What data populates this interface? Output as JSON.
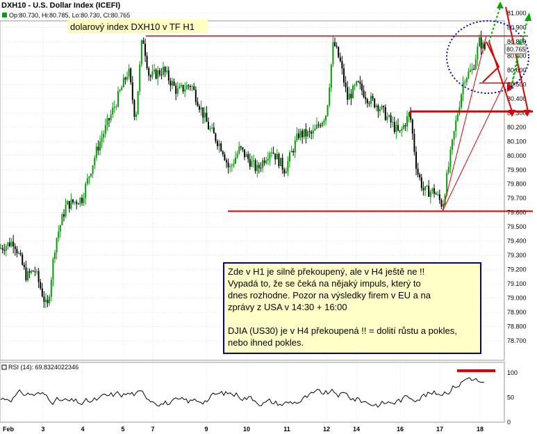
{
  "header": {
    "title": "DXH10 - U.S. Dollar Index (ICEFI)",
    "ohlc": "Op:80.730, Hi:80.785, Lo:80.730, Cl:80.765",
    "last_price": "80.765"
  },
  "annotations": {
    "title_box": "dolarový index DXH10 v TF H1",
    "note": [
      {
        "text": "Zde v H1 je silně překoupený, ale v H4 ještě ne  !!",
        "underline": false
      },
      {
        "text": "Vypadá to, že se čeká na nějaký impuls, který to",
        "underline": false
      },
      {
        "text": "dnes rozhodne.  Pozor na výsledky firem v EU a na",
        "underline": false
      },
      {
        "text": "zprávy z USA v 14:30 + 16:00",
        "underline": false
      },
      {
        "text": "",
        "underline": false
      },
      {
        "text": "DJIA (US30)  je v H4 překoupená !! = dolití růstu a pokles,",
        "underline": false
      },
      {
        "text": "nebo ihned pokles.",
        "underline": false
      }
    ]
  },
  "rsi": {
    "label": "RSI (14): 69.8324022346",
    "ticks": [
      0,
      50,
      100
    ],
    "ylim": [
      0,
      100
    ]
  },
  "colors": {
    "up": "#00a000",
    "down": "#000000",
    "grid": "#c8c8c8",
    "resistance": "#e00000",
    "note_border": "#0000aa",
    "note_fill": "#ffffc8",
    "title_fill": "#ffffc0",
    "circle": "#0000cc",
    "arrow_up": "#00aa00"
  },
  "chart_data": {
    "type": "line",
    "title": "DXH10 - U.S. Dollar Index (ICEFI)",
    "xlabel": "",
    "ylabel": "",
    "ylim": [
      78.7,
      81.0
    ],
    "yticks": [
      "78.700",
      "78.800",
      "78.900",
      "79.000",
      "79.100",
      "79.200",
      "79.300",
      "79.400",
      "79.500",
      "79.600",
      "79.700",
      "79.800",
      "79.900",
      "80.000",
      "80.100",
      "80.200",
      "80.300",
      "80.400",
      "80.500",
      "80.600",
      "80.700",
      "80.800",
      "80.900",
      "81.000"
    ],
    "x_ticks": [
      "Feb",
      "3",
      "4",
      "5",
      "7",
      "9",
      "10",
      "11",
      "12",
      "14",
      "16",
      "17",
      "18"
    ],
    "grid": true,
    "series": [
      {
        "x": [
          "Feb",
          "3",
          "4",
          "5",
          "7",
          "9",
          "10",
          "11",
          "12",
          "14",
          "16",
          "17",
          "18"
        ],
        "values": [
          79.35,
          79.15,
          79.55,
          80.1,
          80.45,
          80.3,
          79.95,
          80.0,
          80.3,
          80.4,
          80.1,
          79.72,
          80.76
        ]
      }
    ],
    "key_points": [
      {
        "x": 0,
        "y": 79.35
      },
      {
        "x": 20,
        "y": 79.4
      },
      {
        "x": 38,
        "y": 79.15
      },
      {
        "x": 50,
        "y": 79.2
      },
      {
        "x": 68,
        "y": 78.92
      },
      {
        "x": 80,
        "y": 79.4
      },
      {
        "x": 95,
        "y": 79.65
      },
      {
        "x": 118,
        "y": 79.7
      },
      {
        "x": 140,
        "y": 80.05
      },
      {
        "x": 165,
        "y": 80.35
      },
      {
        "x": 185,
        "y": 80.6
      },
      {
        "x": 195,
        "y": 80.25
      },
      {
        "x": 205,
        "y": 80.85
      },
      {
        "x": 215,
        "y": 80.55
      },
      {
        "x": 235,
        "y": 80.6
      },
      {
        "x": 255,
        "y": 80.45
      },
      {
        "x": 275,
        "y": 80.5
      },
      {
        "x": 300,
        "y": 80.2
      },
      {
        "x": 320,
        "y": 80.05
      },
      {
        "x": 330,
        "y": 79.9
      },
      {
        "x": 345,
        "y": 80.05
      },
      {
        "x": 370,
        "y": 79.9
      },
      {
        "x": 390,
        "y": 80.05
      },
      {
        "x": 410,
        "y": 79.9
      },
      {
        "x": 430,
        "y": 80.15
      },
      {
        "x": 450,
        "y": 80.15
      },
      {
        "x": 470,
        "y": 80.3
      },
      {
        "x": 480,
        "y": 80.8
      },
      {
        "x": 490,
        "y": 80.65
      },
      {
        "x": 500,
        "y": 80.4
      },
      {
        "x": 515,
        "y": 80.5
      },
      {
        "x": 530,
        "y": 80.4
      },
      {
        "x": 545,
        "y": 80.35
      },
      {
        "x": 560,
        "y": 80.25
      },
      {
        "x": 575,
        "y": 80.15
      },
      {
        "x": 590,
        "y": 80.3
      },
      {
        "x": 600,
        "y": 79.9
      },
      {
        "x": 610,
        "y": 79.75
      },
      {
        "x": 625,
        "y": 79.75
      },
      {
        "x": 637,
        "y": 79.65
      },
      {
        "x": 645,
        "y": 79.9
      },
      {
        "x": 655,
        "y": 80.2
      },
      {
        "x": 668,
        "y": 80.55
      },
      {
        "x": 680,
        "y": 80.6
      },
      {
        "x": 690,
        "y": 80.8
      },
      {
        "x": 698,
        "y": 80.75
      }
    ],
    "levels": [
      80.84,
      80.31,
      79.61,
      80.51
    ]
  }
}
